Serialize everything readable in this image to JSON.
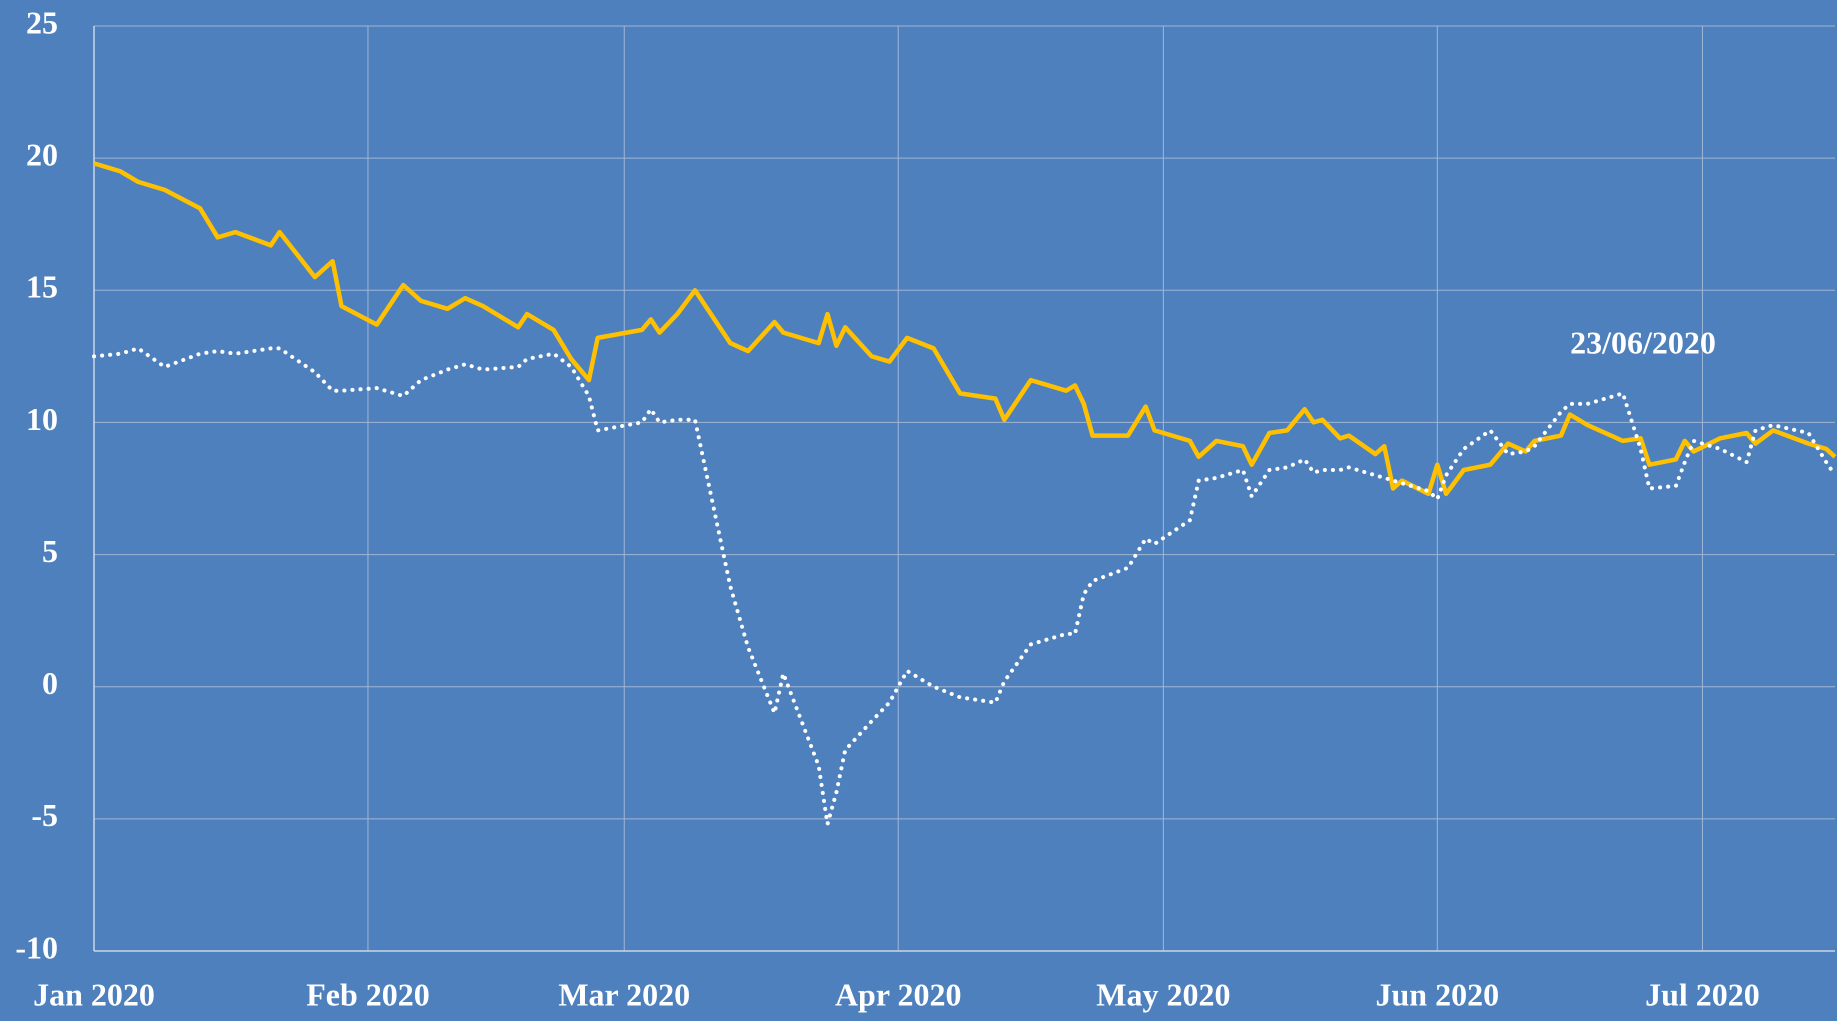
{
  "chart_data": {
    "type": "line",
    "annotation": "23/06/2020",
    "x": [
      0,
      3,
      5,
      8,
      12,
      14,
      16,
      20,
      21,
      25,
      27,
      28,
      32,
      35,
      37,
      40,
      42,
      44,
      48,
      49,
      52,
      54,
      56,
      57,
      62,
      63,
      64,
      66,
      68,
      72,
      74,
      77,
      78,
      82,
      83,
      84,
      85,
      88,
      90,
      92,
      95,
      98,
      102,
      103,
      106,
      110,
      111,
      112,
      113,
      117,
      119,
      120,
      124,
      125,
      127,
      130,
      131,
      133,
      135,
      137,
      138,
      139,
      141,
      142,
      145,
      146,
      147,
      148,
      151,
      152,
      153,
      155,
      158,
      160,
      162,
      163,
      166,
      167,
      169,
      173,
      175,
      176,
      179,
      180,
      181,
      184,
      187,
      188,
      190,
      194,
      196,
      197
    ],
    "xlim": [
      0,
      197
    ],
    "xticks": [
      {
        "value": 0,
        "label": "Jan 2020"
      },
      {
        "value": 31,
        "label": "Feb 2020"
      },
      {
        "value": 60,
        "label": "Mar 2020"
      },
      {
        "value": 91,
        "label": "Apr 2020"
      },
      {
        "value": 121,
        "label": "May 2020"
      },
      {
        "value": 152,
        "label": "Jun 2020"
      },
      {
        "value": 182,
        "label": "Jul 2020"
      }
    ],
    "ylim": [
      -10,
      25
    ],
    "yticks": [
      -10,
      -5,
      0,
      5,
      10,
      15,
      20,
      25
    ],
    "grid": true,
    "series": [
      {
        "color": "#ffc000",
        "style": "solid",
        "values": [
          19.8,
          19.5,
          19.1,
          18.8,
          18.1,
          17.0,
          17.2,
          16.7,
          17.2,
          15.5,
          16.1,
          14.4,
          13.7,
          15.2,
          14.6,
          14.3,
          14.7,
          14.4,
          13.6,
          14.1,
          13.5,
          12.4,
          11.6,
          13.2,
          13.5,
          13.9,
          13.4,
          14.1,
          15.0,
          13.0,
          12.7,
          13.8,
          13.4,
          13.0,
          14.1,
          12.9,
          13.6,
          12.5,
          12.3,
          13.2,
          12.8,
          11.1,
          10.9,
          10.1,
          11.6,
          11.2,
          11.4,
          10.7,
          9.5,
          9.5,
          10.6,
          9.7,
          9.3,
          8.7,
          9.3,
          9.1,
          8.4,
          9.6,
          9.7,
          10.5,
          10.0,
          10.1,
          9.4,
          9.5,
          8.8,
          9.1,
          7.5,
          7.8,
          7.3,
          8.4,
          7.3,
          8.2,
          8.4,
          9.2,
          8.9,
          9.3,
          9.5,
          10.3,
          9.9,
          9.3,
          9.4,
          8.4,
          8.6,
          9.3,
          8.9,
          9.4,
          9.6,
          9.2,
          9.7,
          9.2,
          9.0,
          8.7
        ]
      },
      {
        "color": "#ffffff",
        "style": "dotted",
        "values": [
          12.5,
          12.6,
          12.8,
          12.1,
          12.6,
          12.7,
          12.6,
          12.8,
          12.8,
          11.9,
          11.2,
          11.2,
          11.3,
          11.0,
          11.6,
          12.0,
          12.2,
          12.0,
          12.1,
          12.4,
          12.6,
          12.1,
          11.0,
          9.7,
          10.0,
          10.5,
          10.0,
          10.1,
          10.1,
          3.8,
          1.5,
          -1.0,
          0.5,
          -3.0,
          -5.2,
          -4.0,
          -2.4,
          -1.3,
          -0.6,
          0.6,
          0.0,
          -0.4,
          -0.6,
          0.2,
          1.6,
          2.0,
          2.0,
          3.5,
          4.0,
          4.5,
          5.6,
          5.4,
          6.3,
          7.8,
          7.9,
          8.2,
          7.2,
          8.2,
          8.3,
          8.6,
          8.1,
          8.2,
          8.2,
          8.3,
          8.0,
          7.9,
          7.8,
          7.7,
          7.4,
          7.1,
          8.0,
          9.0,
          9.7,
          8.8,
          8.9,
          9.1,
          10.4,
          10.7,
          10.7,
          11.1,
          9.0,
          7.5,
          7.6,
          8.5,
          9.3,
          9.0,
          8.5,
          9.7,
          9.9,
          9.6,
          8.5,
          8.0
        ]
      }
    ]
  }
}
